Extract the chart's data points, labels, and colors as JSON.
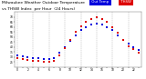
{
  "title_line1": "Milwaukee Weather Outdoor Temperature",
  "title_line2": "vs THSW Index  per Hour  (24 Hours)",
  "title_fontsize": 3.2,
  "background_color": "#ffffff",
  "plot_bg_color": "#ffffff",
  "grid_color": "#aaaaaa",
  "hours": [
    0,
    1,
    2,
    3,
    4,
    5,
    6,
    7,
    8,
    9,
    10,
    11,
    12,
    13,
    14,
    15,
    16,
    17,
    18,
    19,
    20,
    21,
    22,
    23
  ],
  "temp_blue": [
    32,
    31,
    30,
    29,
    29,
    28,
    28,
    29,
    34,
    40,
    46,
    52,
    57,
    60,
    62,
    63,
    62,
    60,
    57,
    52,
    47,
    43,
    40,
    37
  ],
  "thsw_red": [
    29,
    28,
    27,
    26,
    26,
    25,
    25,
    26,
    32,
    39,
    47,
    55,
    61,
    65,
    68,
    70,
    68,
    65,
    60,
    54,
    47,
    41,
    38,
    34
  ],
  "ylim": [
    20,
    75
  ],
  "yticks": [
    25,
    30,
    35,
    40,
    45,
    50,
    55,
    60,
    65,
    70
  ],
  "ytick_labels": [
    "25",
    "30",
    "35",
    "40",
    "45",
    "50",
    "55",
    "60",
    "65",
    "70"
  ],
  "xtick_labels": [
    "0",
    "",
    "2",
    "",
    "4",
    "",
    "6",
    "",
    "8",
    "",
    "10",
    "",
    "12",
    "",
    "14",
    "",
    "16",
    "",
    "18",
    "",
    "20",
    "",
    "22",
    ""
  ],
  "dot_size": 1.5,
  "blue_color": "#0000dd",
  "red_color": "#dd0000",
  "legend_blue_label": "Out Temp",
  "legend_red_label": "THSW",
  "vgrid_hours": [
    0,
    3,
    6,
    9,
    12,
    15,
    18,
    21
  ]
}
